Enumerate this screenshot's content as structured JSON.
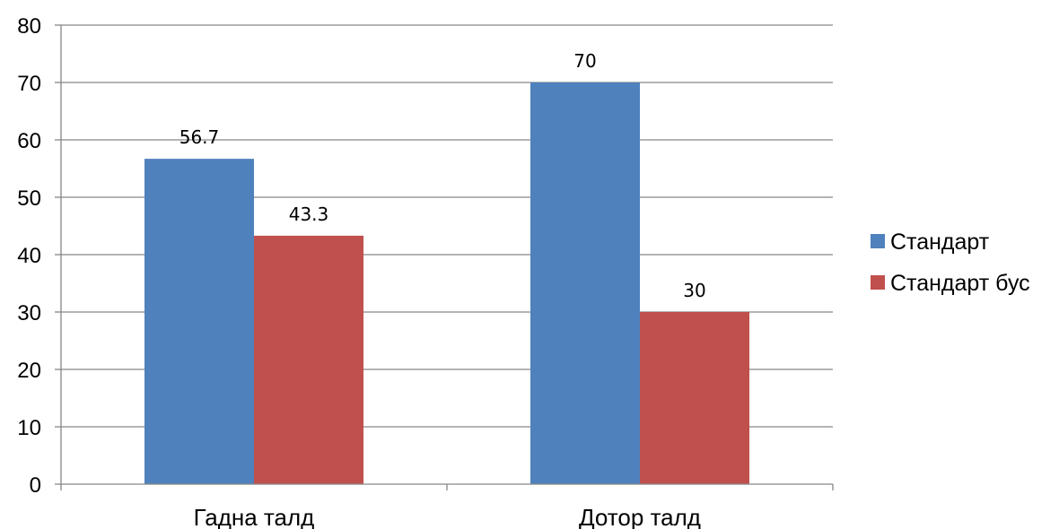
{
  "chart_data": {
    "type": "bar",
    "title": "",
    "xlabel": "",
    "ylabel": "",
    "categories": [
      "Гадна талд",
      "Дотор талд"
    ],
    "series": [
      {
        "name": "Стандарт",
        "values": [
          56.7,
          70
        ],
        "color": "#4f81bd"
      },
      {
        "name": "Стандарт бус",
        "values": [
          43.3,
          30
        ],
        "color": "#c0504d"
      }
    ],
    "data_labels": [
      [
        "56.7",
        "70"
      ],
      [
        "43.3",
        "30"
      ]
    ],
    "ylim": [
      0,
      80
    ],
    "yticks": [
      0,
      10,
      20,
      30,
      40,
      50,
      60,
      70,
      80
    ],
    "grid": true,
    "legend_position": "right",
    "colors": {
      "grid": "#868686",
      "axis": "#868686",
      "text": "#000000"
    }
  }
}
